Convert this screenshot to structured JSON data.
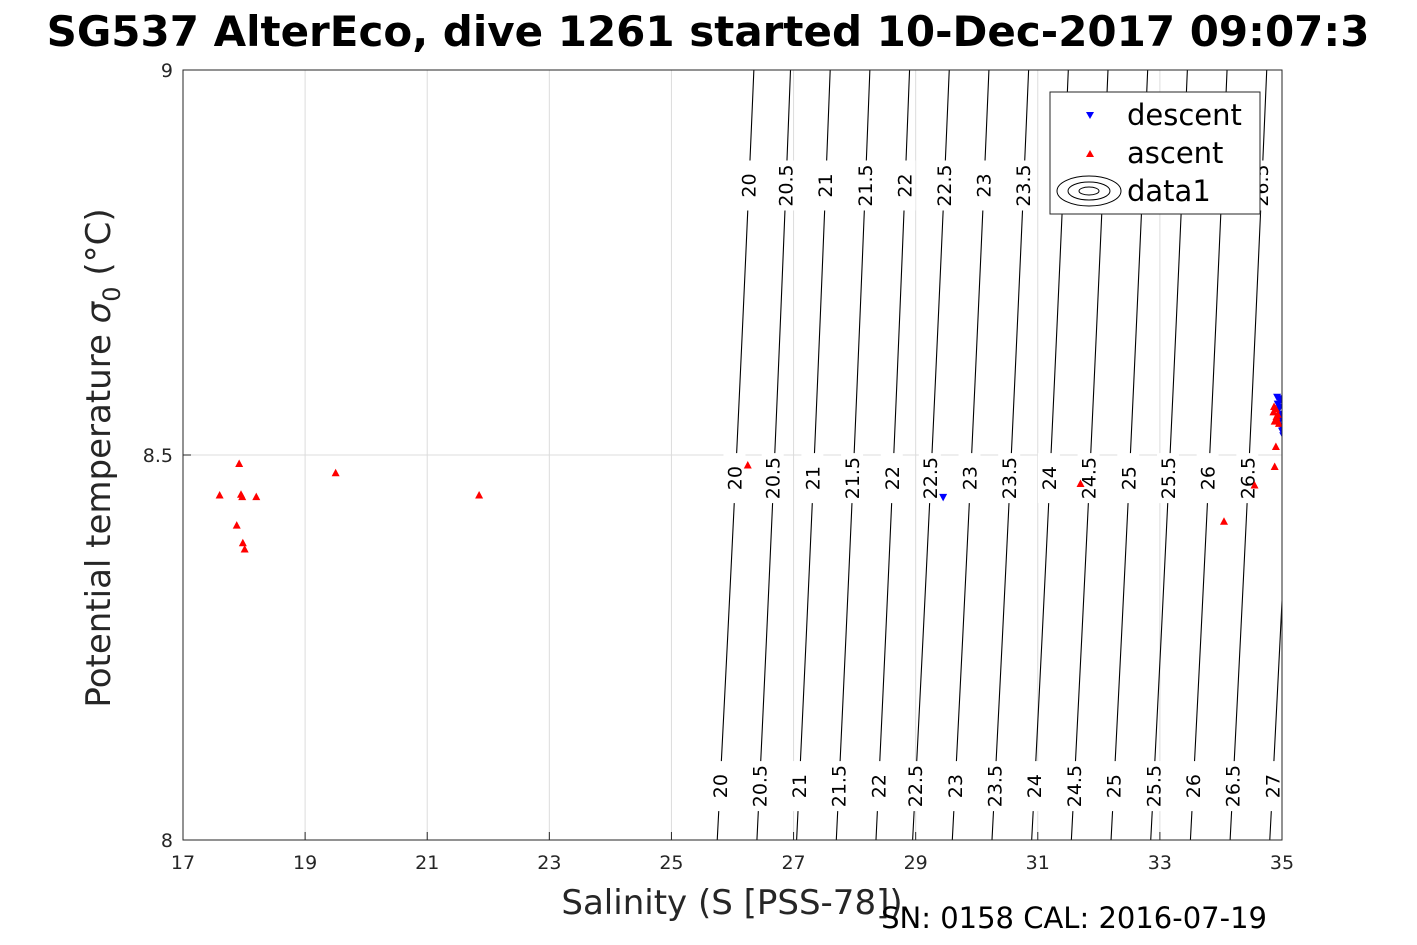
{
  "figure": {
    "title": "SG537 AlterEco, dive 1261 started 10-Dec-2017 09:07:3",
    "footer": "SN: 0158  CAL: 2016-07-19"
  },
  "chart_data": {
    "type": "scatter",
    "xlabel": "Salinity (S [PSS-78])",
    "ylabel_prefix": "Potential temperature ",
    "ylabel_sigma": "σ",
    "ylabel_sub": "0",
    "ylabel_suffix": " (°C)",
    "xlim": [
      17,
      35
    ],
    "ylim": [
      8,
      9
    ],
    "xticks": [
      17,
      19,
      21,
      23,
      25,
      27,
      29,
      31,
      33,
      35
    ],
    "xtick_labels": [
      "17",
      "19",
      "21",
      "23",
      "25",
      "27",
      "29",
      "31",
      "33",
      "35"
    ],
    "yticks": [
      8,
      8.5,
      9
    ],
    "ytick_labels": [
      "8",
      "8.5",
      "9"
    ],
    "grid": true,
    "legend": {
      "placement": "top-right",
      "entries": [
        {
          "label": "descent",
          "marker": "triangle-down",
          "color": "#0000ff"
        },
        {
          "label": "ascent",
          "marker": "triangle-up",
          "color": "#ff0000"
        },
        {
          "label": "data1",
          "marker": "contour",
          "color": "#000000"
        }
      ]
    },
    "series": [
      {
        "name": "descent",
        "marker": "triangle-down",
        "color": "#0000ff",
        "points": [
          [
            29.45,
            8.445
          ],
          [
            34.92,
            8.575
          ],
          [
            34.95,
            8.573
          ],
          [
            34.98,
            8.571
          ],
          [
            34.93,
            8.566
          ],
          [
            34.96,
            8.562
          ],
          [
            34.94,
            8.558
          ],
          [
            34.97,
            8.553
          ],
          [
            34.99,
            8.548
          ],
          [
            34.95,
            8.543
          ],
          [
            34.98,
            8.538
          ],
          [
            35.0,
            8.531
          ],
          [
            35.02,
            8.525
          ]
        ]
      },
      {
        "name": "ascent",
        "marker": "triangle-up",
        "color": "#ff0000",
        "points": [
          [
            17.6,
            8.448
          ],
          [
            17.92,
            8.489
          ],
          [
            17.95,
            8.449
          ],
          [
            17.97,
            8.446
          ],
          [
            18.2,
            8.446
          ],
          [
            17.88,
            8.409
          ],
          [
            17.98,
            8.386
          ],
          [
            18.01,
            8.378
          ],
          [
            19.5,
            8.477
          ],
          [
            21.85,
            8.448
          ],
          [
            26.25,
            8.487
          ],
          [
            31.7,
            8.463
          ],
          [
            34.05,
            8.414
          ],
          [
            34.55,
            8.461
          ],
          [
            34.88,
            8.485
          ],
          [
            34.9,
            8.511
          ],
          [
            34.88,
            8.544
          ],
          [
            34.91,
            8.55
          ],
          [
            34.86,
            8.556
          ],
          [
            34.9,
            8.56
          ],
          [
            34.93,
            8.553
          ],
          [
            34.87,
            8.563
          ],
          [
            34.92,
            8.546
          ],
          [
            34.95,
            8.541
          ]
        ]
      }
    ],
    "density_contours": {
      "name": "data1",
      "levels": [
        "20",
        "20.5",
        "21",
        "21.5",
        "22",
        "22.5",
        "23",
        "23.5",
        "24",
        "24.5",
        "25",
        "25.5",
        "26",
        "26.5",
        "27"
      ],
      "salinity_at_top": [
        26.35,
        26.95,
        27.6,
        28.25,
        28.9,
        29.55,
        30.2,
        30.85,
        31.5,
        32.15,
        32.8,
        33.45,
        34.1,
        34.75,
        35.4
      ],
      "salinity_at_bottom": [
        25.75,
        26.4,
        27.05,
        27.7,
        28.35,
        28.95,
        29.6,
        30.25,
        30.9,
        31.55,
        32.2,
        32.85,
        33.5,
        34.15,
        34.8
      ],
      "label_y": [
        8.85,
        8.47,
        8.07
      ]
    }
  }
}
